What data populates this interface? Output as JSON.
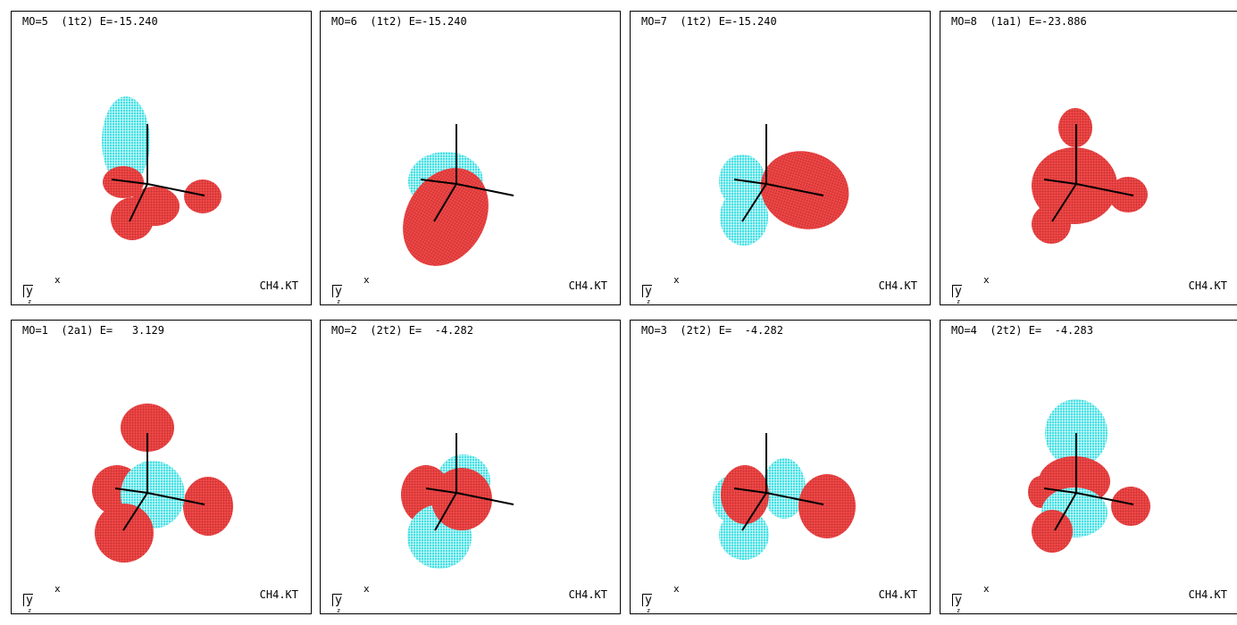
{
  "panels": [
    {
      "title": "MO=5  (1t2) E=-15.240",
      "file": "CH4.KT",
      "axis_x": "x",
      "axis_y": "y",
      "axis_z": "z"
    },
    {
      "title": "MO=6  (1t2) E=-15.240",
      "file": "CH4.KT",
      "axis_x": "x",
      "axis_y": "y",
      "axis_z": "z"
    },
    {
      "title": "MO=7  (1t2) E=-15.240",
      "file": "CH4.KT",
      "axis_x": "x",
      "axis_y": "y",
      "axis_z": "z"
    },
    {
      "title": "MO=8  (1a1) E=-23.886",
      "file": "CH4.KT",
      "axis_x": "x",
      "axis_y": "y",
      "axis_z": "z"
    },
    {
      "title": "MO=1  (2a1) E=   3.129",
      "file": "CH4.KT",
      "axis_x": "x",
      "axis_y": "y",
      "axis_z": "z"
    },
    {
      "title": "MO=2  (2t2) E=  -4.282",
      "file": "CH4.KT",
      "axis_x": "x",
      "axis_y": "y",
      "axis_z": "z"
    },
    {
      "title": "MO=3  (2t2) E=  -4.282",
      "file": "CH4.KT",
      "axis_x": "x",
      "axis_y": "y",
      "axis_z": "z"
    },
    {
      "title": "MO=4  (2t2) E=  -4.283",
      "file": "CH4.KT",
      "axis_x": "x",
      "axis_y": "y",
      "axis_z": "z"
    }
  ],
  "colors": {
    "positive_lobe": "#f04848",
    "negative_lobe": "#44e0e4",
    "bond": "#000000",
    "border": "#000000"
  }
}
